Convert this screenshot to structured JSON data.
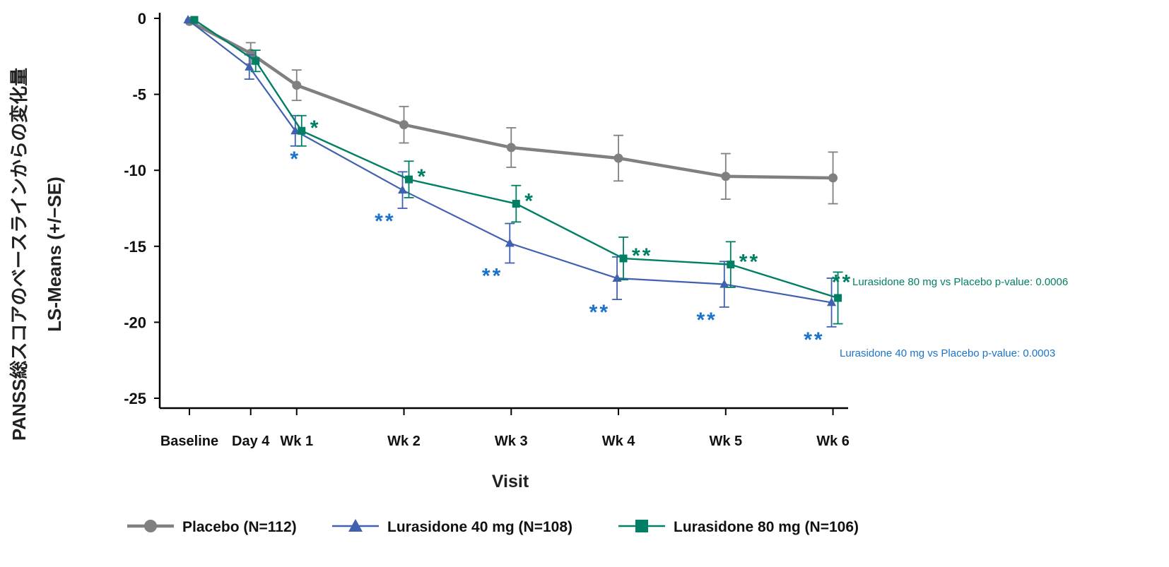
{
  "chart_data": {
    "type": "line",
    "ylabel_line1": "PANSS総スコアのベースラインからの変化量",
    "ylabel_line2": "LS-Means (+/−SE)",
    "xlabel": "Visit",
    "ylim": [
      -25,
      0
    ],
    "yticks": [
      0,
      -5,
      -10,
      -15,
      -20,
      -25
    ],
    "categories": [
      "Baseline",
      "Day 4",
      "Wk 1",
      "Wk 2",
      "Wk 3",
      "Wk 4",
      "Wk 5",
      "Wk 6"
    ],
    "x_days": [
      0,
      4,
      7,
      14,
      21,
      28,
      35,
      42
    ],
    "series": [
      {
        "name": "Placebo (N=112)",
        "color": "#808080",
        "marker": "circle",
        "values": [
          -0.2,
          -2.3,
          -4.4,
          -7.0,
          -8.5,
          -9.2,
          -10.4,
          -10.5
        ],
        "se": [
          0,
          0.7,
          1.0,
          1.2,
          1.3,
          1.5,
          1.5,
          1.7
        ]
      },
      {
        "name": "Lurasidone 40 mg (N=108)",
        "color": "#4060b0",
        "marker": "triangle",
        "values": [
          -0.1,
          -3.2,
          -7.4,
          -11.3,
          -14.8,
          -17.1,
          -17.5,
          -18.7
        ],
        "se": [
          0,
          0.8,
          1.0,
          1.2,
          1.3,
          1.4,
          1.5,
          1.6
        ],
        "significance": [
          "",
          "",
          "*",
          "**",
          "**",
          "**",
          "**",
          "**"
        ]
      },
      {
        "name": "Lurasidone 80 mg (N=106)",
        "color": "#007f64",
        "marker": "square",
        "values": [
          -0.1,
          -2.8,
          -7.4,
          -10.6,
          -12.2,
          -15.8,
          -16.2,
          -18.4
        ],
        "se": [
          0,
          0.7,
          1.0,
          1.2,
          1.2,
          1.4,
          1.5,
          1.7
        ],
        "significance": [
          "",
          "",
          "*",
          "*",
          "*",
          "**",
          "**",
          "**"
        ]
      }
    ],
    "annotations": [
      {
        "text": "Lurasidone 80 mg vs Placebo p-value: 0.0006",
        "color": "#007f64"
      },
      {
        "text": "Lurasidone 40 mg vs Placebo p-value: 0.0003",
        "color": "#1a73c8"
      }
    ],
    "legend_position": "bottom",
    "grid": false
  }
}
